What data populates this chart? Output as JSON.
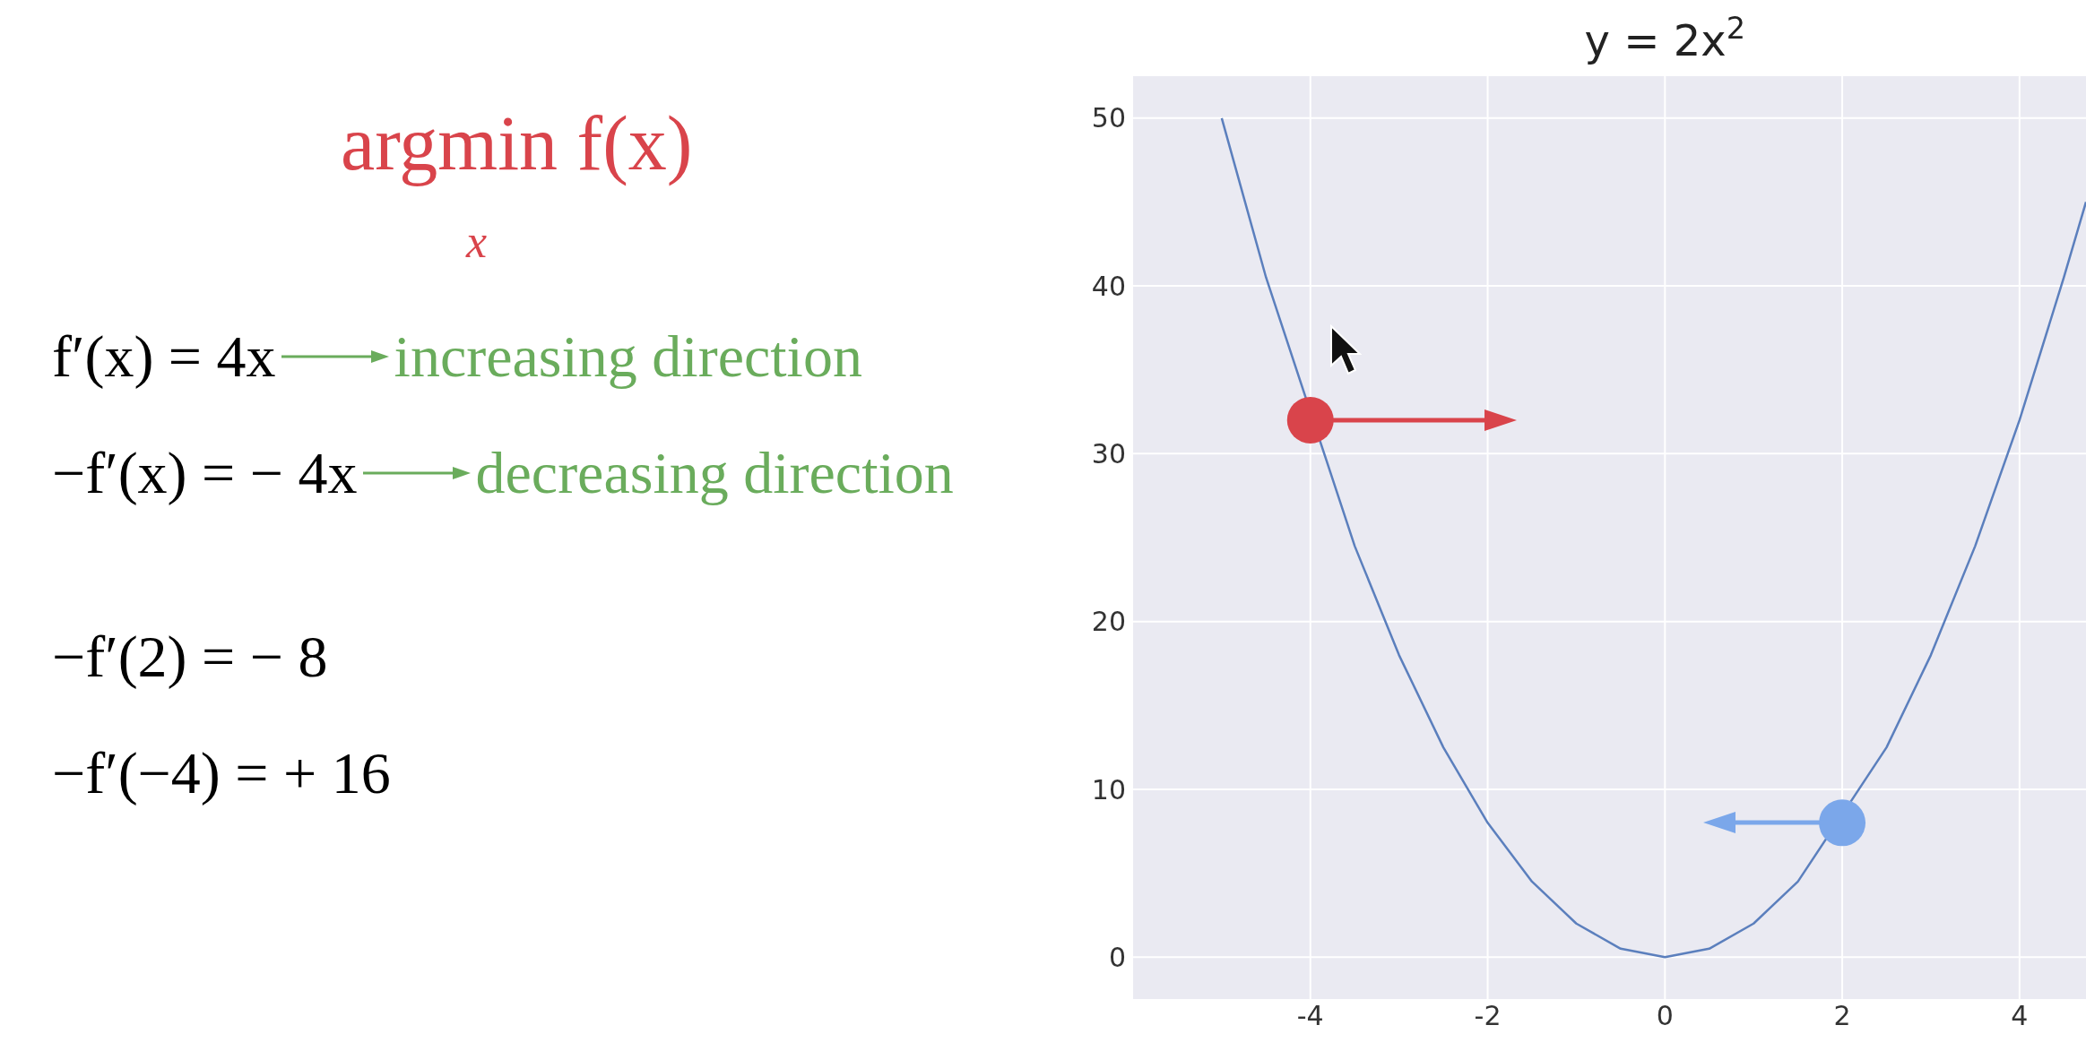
{
  "chart_data": {
    "type": "line",
    "title": "y = 2x$^{2}$",
    "series": [
      {
        "type": "line",
        "color": "#5b7fbd",
        "marker": "none",
        "line_style": "solid",
        "x": [
          -5,
          -4.5,
          -4,
          -3.5,
          -3,
          -2.5,
          -2,
          -1.5,
          -1,
          -0.5,
          0,
          0.5,
          1,
          1.5,
          2,
          2.5,
          3,
          3.5,
          4,
          4.5,
          4.75
        ],
        "values": [
          50,
          40.5,
          null,
          24.5,
          18,
          12.5,
          8,
          4.5,
          2,
          0.5,
          0,
          0.5,
          2,
          4.5,
          null,
          12.5,
          18,
          24.5,
          32,
          40.5,
          45
        ]
      },
      {
        "type": "scatter",
        "marker": "circle",
        "x": [
          -4,
          2
        ],
        "values": [
          32,
          8
        ],
        "colors": [
          "#d9444b",
          "#7ba7ea"
        ]
      }
    ],
    "xlim": [
      -6,
      4.75
    ],
    "xticks": [
      -4,
      -2,
      0,
      2,
      4
    ],
    "ylim": [
      -2.5,
      52.5
    ],
    "yticks": [
      0,
      10,
      20,
      30,
      40,
      50
    ],
    "grid": true,
    "legend": false,
    "annotations": [
      "argmin f(x)",
      "x",
      "f′(x) = 4x",
      "increasing direction",
      "−f′(x) = − 4x",
      "decreasing direction",
      "−f′(2) = − 8",
      "−f′(−4) = + 16"
    ]
  }
}
